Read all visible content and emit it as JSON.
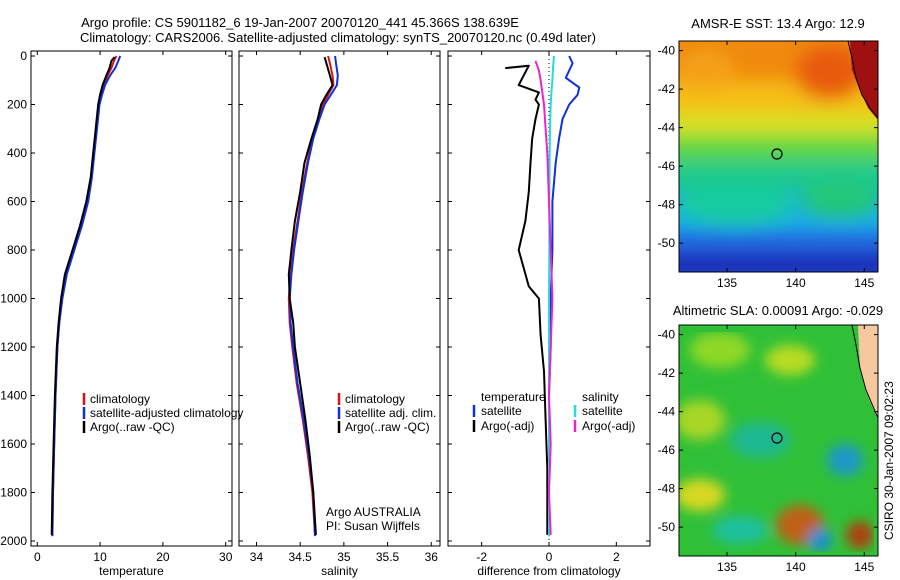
{
  "title": {
    "line1": "Argo profile: CS 5901182_6 19-Jan-2007 20070120_441 45.366S 138.639E",
    "line2": "Climatology: CARS2006. Satellite-adjusted climatology: synTS_20070120.nc (0.49d later)"
  },
  "colors": {
    "clim": "#dd1111",
    "sat": "#1030dd",
    "argo": "#000000",
    "sat_sal": "#22dddd",
    "argo_sal": "#ee22cc"
  },
  "chart_data": [
    {
      "type": "line",
      "id": "temperature",
      "xlabel": "temperature",
      "xlim": [
        -1,
        31
      ],
      "ylim": [
        0,
        2000
      ],
      "xticks": [
        0,
        10,
        20,
        30
      ],
      "yticks": [
        0,
        200,
        400,
        600,
        800,
        1000,
        1200,
        1400,
        1600,
        1800,
        2000
      ],
      "ytick_labels": [
        "0",
        "200",
        "400",
        "600",
        "800",
        "1000",
        "1200",
        "1400",
        "1600",
        "1800",
        "2000"
      ],
      "legend": [
        "climatology",
        "satellite-adjusted climatology",
        "Argo(..raw -QC)"
      ],
      "series": [
        {
          "name": "climatology",
          "color": "clim",
          "x": [
            12.6,
            12.2,
            11.8,
            11.2,
            10.6,
            10.2,
            9.8,
            9.4,
            9.0,
            8.6,
            8.0,
            7.0,
            5.8,
            4.6,
            3.9,
            3.5,
            3.2,
            2.9,
            2.7,
            2.5,
            2.4
          ],
          "y": [
            0,
            20,
            50,
            80,
            120,
            160,
            200,
            300,
            400,
            500,
            600,
            700,
            800,
            900,
            1000,
            1100,
            1200,
            1400,
            1600,
            1800,
            1980
          ]
        },
        {
          "name": "satellite-adjusted climatology",
          "color": "sat",
          "x": [
            13.2,
            12.9,
            12.4,
            11.6,
            10.8,
            10.3,
            9.9,
            9.5,
            9.1,
            8.7,
            8.1,
            7.1,
            5.9,
            4.7,
            4.0,
            3.5,
            3.2,
            2.9,
            2.7,
            2.5,
            2.4
          ],
          "y": [
            0,
            20,
            50,
            80,
            120,
            160,
            200,
            300,
            400,
            500,
            600,
            700,
            800,
            900,
            1000,
            1100,
            1200,
            1400,
            1600,
            1800,
            1980
          ]
        },
        {
          "name": "Argo(..raw -QC)",
          "color": "argo",
          "x": [
            12.3,
            11.8,
            11.5,
            11.0,
            10.4,
            10.0,
            9.7,
            9.3,
            8.9,
            8.5,
            7.8,
            6.8,
            5.6,
            4.4,
            3.8,
            3.4,
            3.1,
            2.8,
            2.6,
            2.4,
            2.3
          ],
          "y": [
            5,
            20,
            50,
            80,
            120,
            160,
            200,
            300,
            400,
            500,
            600,
            700,
            800,
            900,
            1000,
            1100,
            1200,
            1400,
            1600,
            1800,
            1975
          ]
        }
      ]
    },
    {
      "type": "line",
      "id": "salinity",
      "xlabel": "salinity",
      "xlim": [
        33.8,
        36.1
      ],
      "ylim": [
        0,
        2000
      ],
      "xticks": [
        34,
        34.5,
        35,
        35.5,
        36
      ],
      "xtick_labels": [
        "34",
        "34.5",
        "35",
        "35.5",
        "36"
      ],
      "legend": [
        "climatology",
        "satellite adj. clim.",
        "Argo(..raw -QC)"
      ],
      "annotation": [
        "Argo AUSTRALIA",
        "PI: Susan Wijffels"
      ],
      "series": [
        {
          "name": "climatology",
          "color": "clim",
          "x": [
            34.82,
            34.84,
            34.87,
            34.88,
            34.82,
            34.76,
            34.71,
            34.64,
            34.58,
            34.52,
            34.47,
            34.42,
            34.39,
            34.37,
            34.38,
            34.41,
            34.46,
            34.53,
            34.59,
            34.64,
            34.67
          ],
          "y": [
            0,
            30,
            80,
            120,
            160,
            200,
            260,
            340,
            440,
            560,
            680,
            800,
            900,
            1000,
            1100,
            1200,
            1350,
            1500,
            1650,
            1800,
            1980
          ]
        },
        {
          "name": "satellite adj. clim.",
          "color": "sat",
          "x": [
            34.9,
            34.91,
            34.93,
            34.92,
            34.85,
            34.78,
            34.72,
            34.65,
            34.59,
            34.53,
            34.48,
            34.43,
            34.4,
            34.38,
            34.39,
            34.42,
            34.47,
            34.54,
            34.6,
            34.65,
            34.67
          ],
          "y": [
            0,
            30,
            80,
            120,
            160,
            200,
            260,
            340,
            440,
            560,
            680,
            800,
            900,
            1000,
            1100,
            1200,
            1350,
            1500,
            1650,
            1800,
            1980
          ]
        },
        {
          "name": "Argo(..raw -QC)",
          "color": "argo",
          "x": [
            34.78,
            34.8,
            34.84,
            34.87,
            34.8,
            34.74,
            34.7,
            34.63,
            34.55,
            34.5,
            34.44,
            34.4,
            34.37,
            34.38,
            34.42,
            34.44,
            34.5,
            34.56,
            34.61,
            34.65,
            34.68
          ],
          "y": [
            5,
            30,
            80,
            120,
            160,
            200,
            260,
            340,
            440,
            560,
            680,
            800,
            900,
            1000,
            1100,
            1200,
            1350,
            1500,
            1650,
            1800,
            1975
          ]
        }
      ]
    },
    {
      "type": "line",
      "id": "difference",
      "xlabel": "difference from climatology",
      "xlim": [
        -3,
        3
      ],
      "ylim": [
        0,
        2000
      ],
      "xticks": [
        -2,
        0,
        2
      ],
      "legend_temp_title": "temperature",
      "legend_sal_title": "salinity",
      "legend_temp": [
        "satellite",
        "Argo(-adj)"
      ],
      "legend_sal": [
        "satellite",
        "Argo(-adj)"
      ],
      "series": [
        {
          "name": "temperature satellite",
          "color": "sat",
          "x": [
            0.6,
            0.7,
            0.6,
            0.5,
            0.7,
            0.9,
            0.85,
            0.6,
            0.4,
            0.3,
            0.2,
            0.1,
            0.1,
            0.05,
            0.05,
            0.0,
            0.0,
            0.0,
            0.0,
            0.0
          ],
          "y": [
            0,
            30,
            60,
            90,
            110,
            130,
            160,
            200,
            260,
            340,
            440,
            600,
            800,
            1000,
            1200,
            1400,
            1600,
            1800,
            1900,
            1980
          ]
        },
        {
          "name": "temperature Argo(-adj)",
          "color": "argo",
          "x": [
            -1.3,
            -0.6,
            -0.9,
            -0.3,
            -0.4,
            -0.3,
            -0.4,
            -0.5,
            -0.55,
            -0.6,
            -0.7,
            -0.9,
            -0.6,
            -0.3,
            -0.25,
            -0.15,
            -0.1,
            -0.05,
            -0.05,
            -0.05
          ],
          "y": [
            50,
            40,
            120,
            150,
            180,
            200,
            260,
            340,
            440,
            560,
            680,
            800,
            950,
            1000,
            1150,
            1300,
            1500,
            1700,
            1850,
            1975
          ]
        },
        {
          "name": "salinity satellite",
          "color": "sat_sal",
          "x": [
            0.15,
            0.12,
            0.1,
            0.07,
            0.05,
            0.03,
            0.02,
            0.01,
            0.01,
            0.0,
            0.0,
            0.0,
            0.0,
            0.0,
            0.0
          ],
          "y": [
            0,
            50,
            100,
            150,
            200,
            300,
            400,
            600,
            800,
            1000,
            1200,
            1400,
            1600,
            1800,
            1980
          ]
        },
        {
          "name": "salinity Argo(-adj)",
          "color": "argo_sal",
          "x": [
            -0.4,
            -0.3,
            -0.25,
            -0.2,
            -0.15,
            -0.1,
            -0.05,
            0.0,
            0.05,
            0.1,
            0.05,
            0.0,
            0.05,
            0.0,
            0.05
          ],
          "y": [
            20,
            60,
            100,
            150,
            200,
            300,
            400,
            600,
            800,
            1000,
            1200,
            1400,
            1600,
            1800,
            1975
          ]
        }
      ]
    },
    {
      "type": "heatmap",
      "id": "sst_map",
      "title": "AMSR-E SST: 13.4  Argo: 12.9",
      "xlim": [
        131.5,
        146
      ],
      "ylim": [
        -51.5,
        -39.5
      ],
      "xticks": [
        135,
        140,
        145
      ],
      "yticks": [
        -40,
        -42,
        -44,
        -46,
        -48,
        -50
      ],
      "marker": {
        "lon": 138.64,
        "lat": -45.37
      }
    },
    {
      "type": "heatmap",
      "id": "sla_map",
      "title": "Altimetric SLA: 0.00091  Argo: -0.029",
      "xlim": [
        131.5,
        146
      ],
      "ylim": [
        -51.5,
        -39.5
      ],
      "xticks": [
        135,
        140,
        145
      ],
      "yticks": [
        -40,
        -42,
        -44,
        -46,
        -48,
        -50
      ],
      "marker": {
        "lon": 138.64,
        "lat": -45.37
      }
    }
  ],
  "footer": {
    "stamp": "CSIRO 30-Jan-2007 09:02:23"
  }
}
